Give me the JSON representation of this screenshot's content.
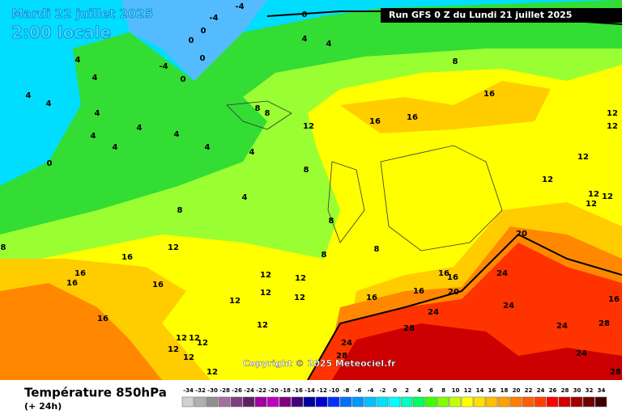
{
  "header": {
    "date": "Mardi 22 juillet 2025",
    "time": "2:00 locale",
    "run": "Run GFS 0 Z du Lundi 21 juillet 2025"
  },
  "copyright": "Copyright © 2025 Meteociel.fr",
  "footer": {
    "title": "Température 850hPa",
    "lead": "(+ 24h)"
  },
  "scale": {
    "values": [
      -34,
      -32,
      -30,
      -28,
      -26,
      -24,
      -22,
      -20,
      -18,
      -16,
      -14,
      -12,
      -10,
      -8,
      -6,
      -4,
      -2,
      0,
      2,
      4,
      6,
      8,
      10,
      12,
      14,
      16,
      18,
      20,
      22,
      24,
      26,
      28,
      30,
      32,
      34
    ],
    "colors": [
      "#d0d0d0",
      "#b0b0b0",
      "#909090",
      "#a070a0",
      "#804080",
      "#602060",
      "#a000a0",
      "#c000c0",
      "#800080",
      "#400080",
      "#0000a0",
      "#0000d0",
      "#0030ff",
      "#0070ff",
      "#0098ff",
      "#00c0ff",
      "#00e0ff",
      "#00ffff",
      "#00ffc0",
      "#00ff60",
      "#40ff00",
      "#80ff00",
      "#c0ff00",
      "#ffff00",
      "#ffe000",
      "#ffc000",
      "#ffa000",
      "#ff8000",
      "#ff6000",
      "#ff4000",
      "#ff0000",
      "#d00000",
      "#a00000",
      "#700000",
      "#400000"
    ]
  },
  "contour_labels": [
    -4,
    -4,
    0,
    0,
    0,
    -4,
    0,
    0,
    4,
    4,
    8,
    16,
    16,
    16,
    12,
    12,
    12,
    12,
    12,
    12,
    12,
    12,
    8,
    8,
    8,
    8,
    8,
    8,
    8,
    4,
    4,
    4,
    4,
    4,
    4,
    4,
    4,
    4,
    4,
    4,
    4,
    0,
    8,
    12,
    16,
    16,
    16,
    16,
    16,
    12,
    12,
    12,
    12,
    12,
    12,
    12,
    12,
    12,
    12,
    12,
    12,
    16,
    16,
    16,
    16,
    20,
    20,
    24,
    24,
    24,
    24,
    24,
    24,
    28,
    28,
    28,
    28,
    16
  ]
}
